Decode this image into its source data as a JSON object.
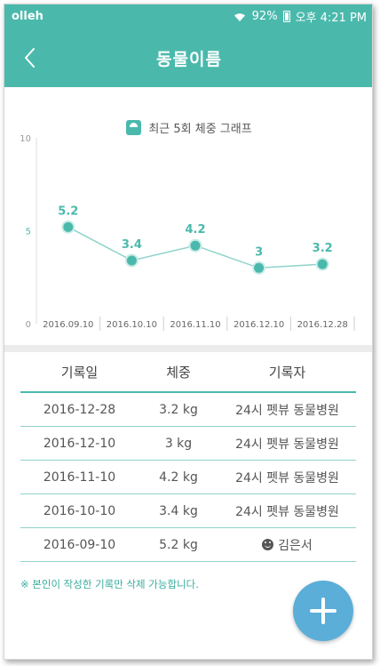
{
  "status_bar": {
    "carrier": "olleh",
    "battery": "92%",
    "time": "오후 4:21 PM"
  },
  "app_bar": {
    "title": "동물이름"
  },
  "chart_data": {
    "type": "line",
    "title": "최근 5회 체중 그래프",
    "categories": [
      "2016.09.10",
      "2016.10.10",
      "2016.11.10",
      "2016.12.10",
      "2016.12.28"
    ],
    "values": [
      5.2,
      3.4,
      4.2,
      3,
      3.2
    ],
    "value_labels": [
      "5.2",
      "3.4",
      "4.2",
      "3",
      "3.2"
    ],
    "yticks": [
      "0",
      "5",
      "10"
    ],
    "ylim": [
      0,
      10
    ],
    "color": "#4ab9ac"
  },
  "table": {
    "headers": {
      "date": "기록일",
      "weight": "체중",
      "recorder": "기록자"
    },
    "rows": [
      {
        "date": "2016-12-28",
        "weight": "3.2 kg",
        "recorder": "24시 펫뷰 동물병원"
      },
      {
        "date": "2016-12-10",
        "weight": "3 kg",
        "recorder": "24시 펫뷰 동물병원"
      },
      {
        "date": "2016-11-10",
        "weight": "4.2 kg",
        "recorder": "24시 펫뷰 동물병원"
      },
      {
        "date": "2016-10-10",
        "weight": "3.4 kg",
        "recorder": "24시 펫뷰 동물병원"
      },
      {
        "date": "2016-09-10",
        "weight": "5.2 kg",
        "recorder": "김은서",
        "icon": "smile-icon"
      }
    ]
  },
  "note": "※ 본인이 작성한 기록만 삭제 가능합니다.",
  "colors": {
    "primary": "#4ab9ac",
    "fab": "#5aaed8"
  },
  "icons": {
    "back": "chevron-left-icon",
    "wifi": "wifi-icon",
    "battery": "battery-icon",
    "legend": "scale-icon",
    "add": "plus-icon"
  }
}
